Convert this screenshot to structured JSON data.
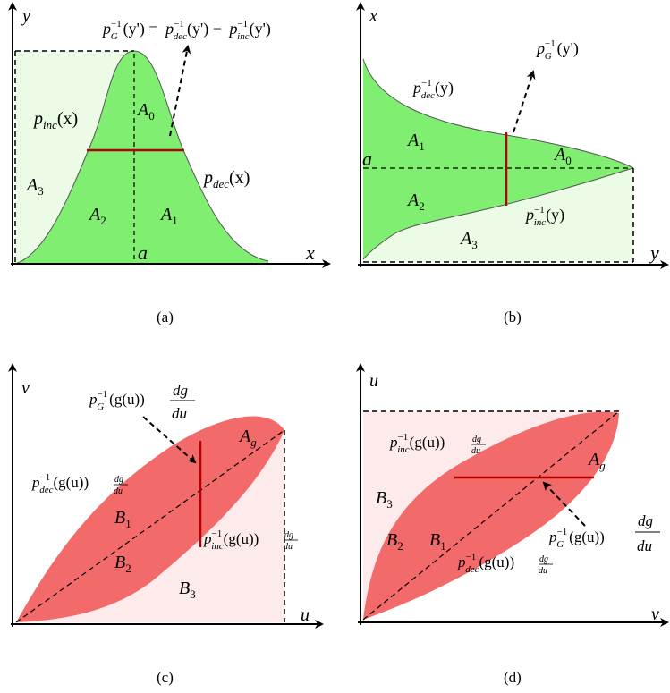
{
  "panels": [
    {
      "id": "a",
      "caption": "(a)",
      "axis_x": "x",
      "axis_y": "y",
      "marker": "a",
      "region_color": "#80ee70",
      "shade_color": "#ebfbe6",
      "labels": {
        "a0_main": "A",
        "a0_sub": "0",
        "a1_main": "A",
        "a1_sub": "1",
        "a2_main": "A",
        "a2_sub": "2",
        "a3_main": "A",
        "a3_sub": "3",
        "pinc_main": "p",
        "pinc_sub": "inc",
        "pinc_arg": "(x)",
        "pdec_main": "p",
        "pdec_sub": "dec",
        "pdec_arg": "(x)",
        "eq_p1": "p",
        "eq_s1": "G",
        "eq_e1": "−1",
        "eq_a1": "(y') =",
        "eq_p2": "p",
        "eq_s2": "dec",
        "eq_e2": "−1",
        "eq_a2": "(y') −",
        "eq_p3": "p",
        "eq_s3": "inc",
        "eq_e3": "−1",
        "eq_a3": "(y')"
      }
    },
    {
      "id": "b",
      "caption": "(b)",
      "axis_x": "y",
      "axis_y": "x",
      "marker": "a",
      "region_color": "#80ee70",
      "shade_color": "#ebfbe6",
      "labels": {
        "a0_main": "A",
        "a0_sub": "0",
        "a1_main": "A",
        "a1_sub": "1",
        "a2_main": "A",
        "a2_sub": "2",
        "a3_main": "A",
        "a3_sub": "3",
        "pdec_main": "p",
        "pdec_sub": "dec",
        "pdec_exp": "−1",
        "pdec_arg": "(y)",
        "pinc_main": "p",
        "pinc_sub": "inc",
        "pinc_exp": "−1",
        "pinc_arg": "(y)",
        "pg_main": "p",
        "pg_sub": "G",
        "pg_exp": "−1",
        "pg_arg": "(y')"
      }
    },
    {
      "id": "c",
      "caption": "(c)",
      "axis_x": "u",
      "axis_y": "v",
      "region_color": "#f26a6a",
      "shade_color": "#fdeaea",
      "labels": {
        "ag_main": "A",
        "ag_sub": "g",
        "b1_main": "B",
        "b1_sub": "1",
        "b2_main": "B",
        "b2_sub": "2",
        "b3_main": "B",
        "b3_sub": "3",
        "pg_main": "p",
        "pg_sub": "G",
        "pg_exp": "−1",
        "pg_arg": "(g(u))",
        "pg_num": "dg",
        "pg_den": "du",
        "pdec_main": "p",
        "pdec_sub": "dec",
        "pdec_exp": "−1",
        "pdec_arg": "(g(u))",
        "pdec_num": "dg",
        "pdec_den": "du",
        "pinc_main": "p",
        "pinc_sub": "inc",
        "pinc_exp": "−1",
        "pinc_arg": "(g(u))",
        "pinc_num": "dg",
        "pinc_den": "du"
      }
    },
    {
      "id": "d",
      "caption": "(d)",
      "axis_x": "v",
      "axis_y": "u",
      "region_color": "#f26a6a",
      "shade_color": "#fdeaea",
      "labels": {
        "ag_main": "A",
        "ag_sub": "g",
        "b1_main": "B",
        "b1_sub": "1",
        "b2_main": "B",
        "b2_sub": "2",
        "b3_main": "B",
        "b3_sub": "3",
        "pinc_main": "p",
        "pinc_sub": "inc",
        "pinc_exp": "−1",
        "pinc_arg": "(g(u))",
        "pinc_num": "dg",
        "pinc_den": "du",
        "pg_main": "p",
        "pg_sub": "G",
        "pg_exp": "−1",
        "pg_arg": "(g(u))",
        "pg_num": "dg",
        "pg_den": "du",
        "pdec_main": "p",
        "pdec_sub": "dec",
        "pdec_exp": "−1",
        "pdec_arg": "(g(u))",
        "pdec_num": "dg",
        "pdec_den": "du"
      }
    }
  ]
}
